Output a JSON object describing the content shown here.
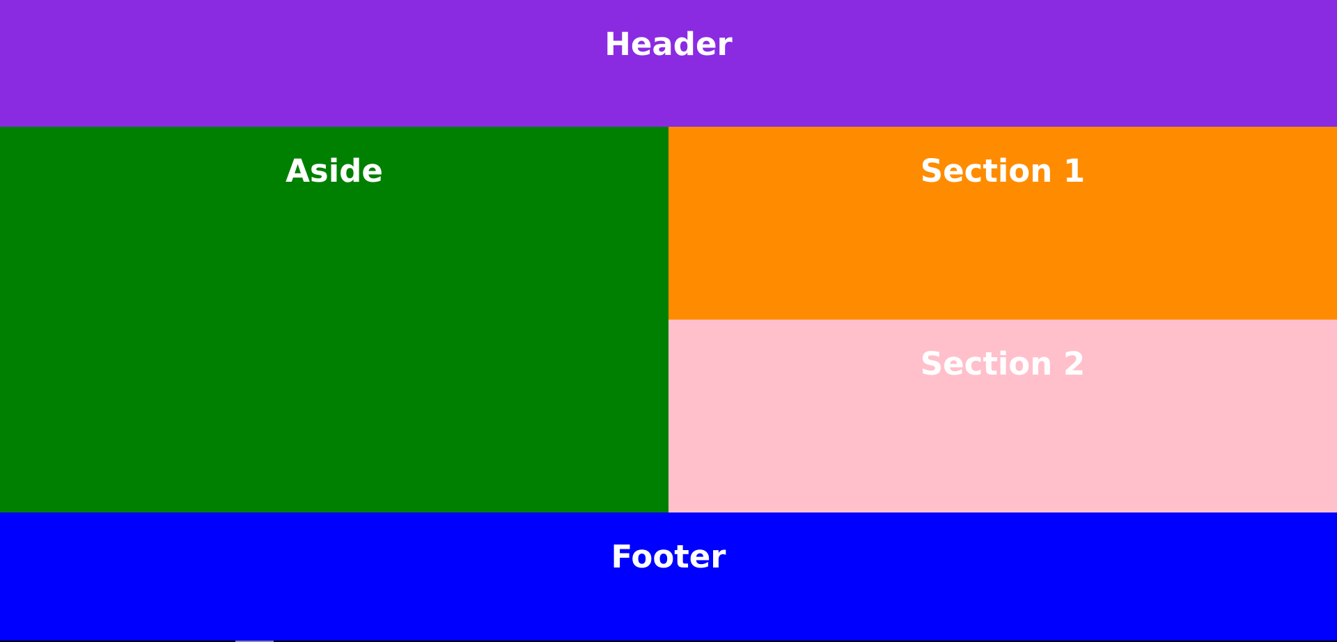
{
  "header": {
    "title": "Header",
    "color": "#8A2BE2"
  },
  "aside": {
    "title": "Aside",
    "color": "#008000"
  },
  "section1": {
    "title": "Section 1",
    "color": "#FF8C00"
  },
  "section2": {
    "title": "Section 2",
    "color": "#FFC0CB"
  },
  "footer": {
    "title": "Footer",
    "color": "#0000FF"
  }
}
